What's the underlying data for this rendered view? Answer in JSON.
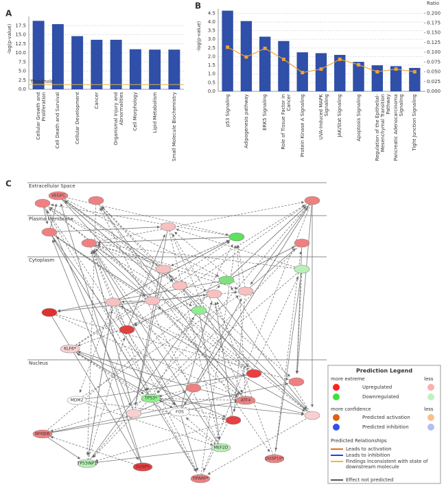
{
  "chart_data": [
    {
      "type": "bar",
      "panel": "A",
      "ylabel": "-log(p-value)",
      "color": "#2f4fa8",
      "categories": [
        "Cellular Growth and Proliferation",
        "Cell Death and Survival",
        "Cellular Development",
        "Cancer",
        "Organismal Injury and Abnormalities",
        "Cell Morphology",
        "Lipid Metabolism",
        "Small Molecule Biochemistry"
      ],
      "values": [
        18.8,
        17.9,
        14.6,
        13.6,
        13.6,
        11.0,
        10.9,
        10.9
      ],
      "ylim": [
        0,
        20
      ],
      "yticks": [
        {
          "value": 0,
          "label": "0.0"
        },
        2.5,
        {
          "value": 5,
          "label": "5.0"
        },
        7.5,
        {
          "value": 10,
          "label": "10.0"
        },
        12.5,
        {
          "value": 15,
          "label": "15.0"
        },
        17.5
      ],
      "threshold": {
        "value": 1.3,
        "label": "Threshold",
        "color": "#e8b040"
      },
      "grid": true
    },
    {
      "type": "bar",
      "panel": "B",
      "ylabel": "-log(p-value)",
      "y2label": "Ratio",
      "categories": [
        "p53 Signaling",
        "Adipogenesis pathway",
        "ERK5 Signaling",
        "Role of Tissue Factor in Cancer",
        "Protein Kinase A Signaling",
        "UVA-Induced MAPK Signaling",
        "JAK/Stat Signaling",
        "Apoptosis Signaling",
        "Regulation of the Epithelial-Mesenchymal Transition Pathway",
        "Pancreatic Adenocarcinoma Signaling",
        "Tight Junction Signaling"
      ],
      "series": [
        {
          "color": "#2f4fa8",
          "values": [
            4.65,
            4.05,
            3.15,
            2.9,
            2.25,
            2.2,
            2.1,
            1.7,
            1.5,
            1.45,
            1.35
          ]
        },
        {
          "color": "#f0a030",
          "axis": "y2",
          "values": [
            0.113,
            0.088,
            0.11,
            0.082,
            0.048,
            0.057,
            0.082,
            0.068,
            0.05,
            0.057,
            0.05
          ]
        }
      ],
      "ylim": [
        0,
        4.75
      ],
      "yticks": [
        {
          "value": 0,
          "label": "0.0"
        },
        0.5,
        {
          "value": 1,
          "label": "1.0"
        },
        1.5,
        {
          "value": 2,
          "label": "2.0"
        },
        2.5,
        {
          "value": 3,
          "label": "3.0"
        },
        3.5,
        {
          "value": 4,
          "label": "4.0"
        },
        4.5
      ],
      "y2lim": [
        0,
        0.211
      ],
      "y2ticks": [
        {
          "value": 0,
          "label": "0.000"
        },
        0.025,
        {
          "value": 0.05,
          "label": "0.050"
        },
        0.075,
        {
          "value": 0.1,
          "label": "0.100"
        },
        0.125,
        {
          "value": 0.15,
          "label": "0.150"
        },
        0.175,
        {
          "value": 0.2,
          "label": "0.200"
        }
      ],
      "grid": true
    }
  ],
  "network": {
    "panel": "C",
    "compartments": [
      "Extracellular Space",
      "Plasma Membrane",
      "Cytoplasm",
      "Nucleus"
    ],
    "nodes": [
      {
        "label": "VEGFC",
        "color": "#f08080"
      },
      {
        "label": "KLF6*",
        "color": "#f8d0d0"
      },
      {
        "label": "MDM2",
        "color": "#ffffff"
      },
      {
        "label": "TP53*",
        "color": "#90ee90"
      },
      {
        "label": "FOS",
        "color": "#ffffff"
      },
      {
        "label": "ATF4",
        "color": "#f08080"
      },
      {
        "label": "DUSP5",
        "color": "#e84040"
      },
      {
        "label": "DUSP10*",
        "color": "#f08080"
      },
      {
        "label": "TP53INP1",
        "color": "#b8f0b8"
      },
      {
        "label": "MEF2D",
        "color": "#b8f0b8"
      },
      {
        "label": "TIPARP*",
        "color": "#f08080"
      },
      {
        "label": "NFKBIB",
        "color": "#f08080"
      }
    ],
    "legend": {
      "title": "Prediction Legend",
      "extreme": "more extreme",
      "less": "less",
      "up": "Upregulated",
      "down": "Downregulated",
      "confidence": "more confidence",
      "less2": "less",
      "activation": "Predicted activation",
      "inhibition": "Predicted inhibition",
      "relationships": "Predicted Relationships",
      "rel": [
        "Leads to activation",
        "Leads to inhibition",
        "Findings inconsistent with state of downstream molecule",
        "Effect not predicted"
      ]
    }
  }
}
